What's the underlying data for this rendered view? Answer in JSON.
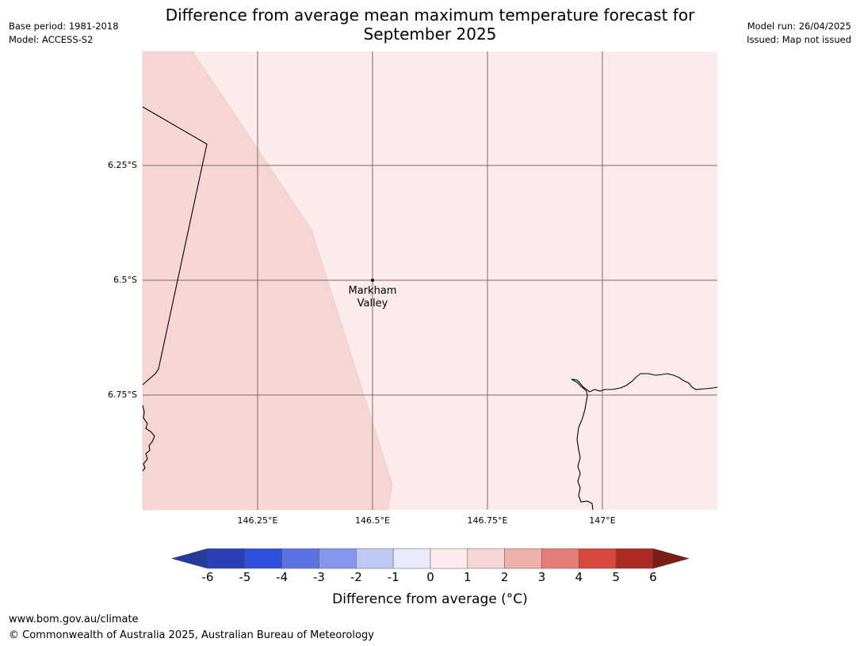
{
  "header": {
    "base_period": "Base period: 1981-2018",
    "model": "Model: ACCESS-S2",
    "model_run": "Model run: 26/04/2025",
    "issued": "Issued: Map not issued",
    "title_line1": "Difference from average mean maximum temperature forecast for",
    "title_line2": "September 2025"
  },
  "map": {
    "lat_labels": [
      "6.25°S",
      "6.5°S",
      "6.75°S"
    ],
    "lon_labels": [
      "146.25°E",
      "146.5°E",
      "146.75°E",
      "147°E"
    ],
    "place": {
      "name_line1": "Markham",
      "name_line2": "Valley"
    },
    "region_colors": {
      "anomaly_1_to_2": "#f6d6d4",
      "anomaly_0_to_1": "#fbebea"
    }
  },
  "colorbar": {
    "ticks": [
      "-6",
      "-5",
      "-4",
      "-3",
      "-2",
      "-1",
      "0",
      "1",
      "2",
      "3",
      "4",
      "5",
      "6"
    ],
    "colors": [
      "#233a9e",
      "#2a3fb5",
      "#3150dd",
      "#5b73e3",
      "#8597ec",
      "#c0c8f5",
      "#e9ebfc",
      "#fbebea",
      "#f6d6d4",
      "#efb0ac",
      "#e57e78",
      "#d9483e",
      "#ab2a22",
      "#7c1d17"
    ],
    "label": "Difference from average (°C)"
  },
  "footer": {
    "url": "www.bom.gov.au/climate",
    "copyright": "© Commonwealth of Australia 2025, Australian Bureau of Meteorology"
  }
}
